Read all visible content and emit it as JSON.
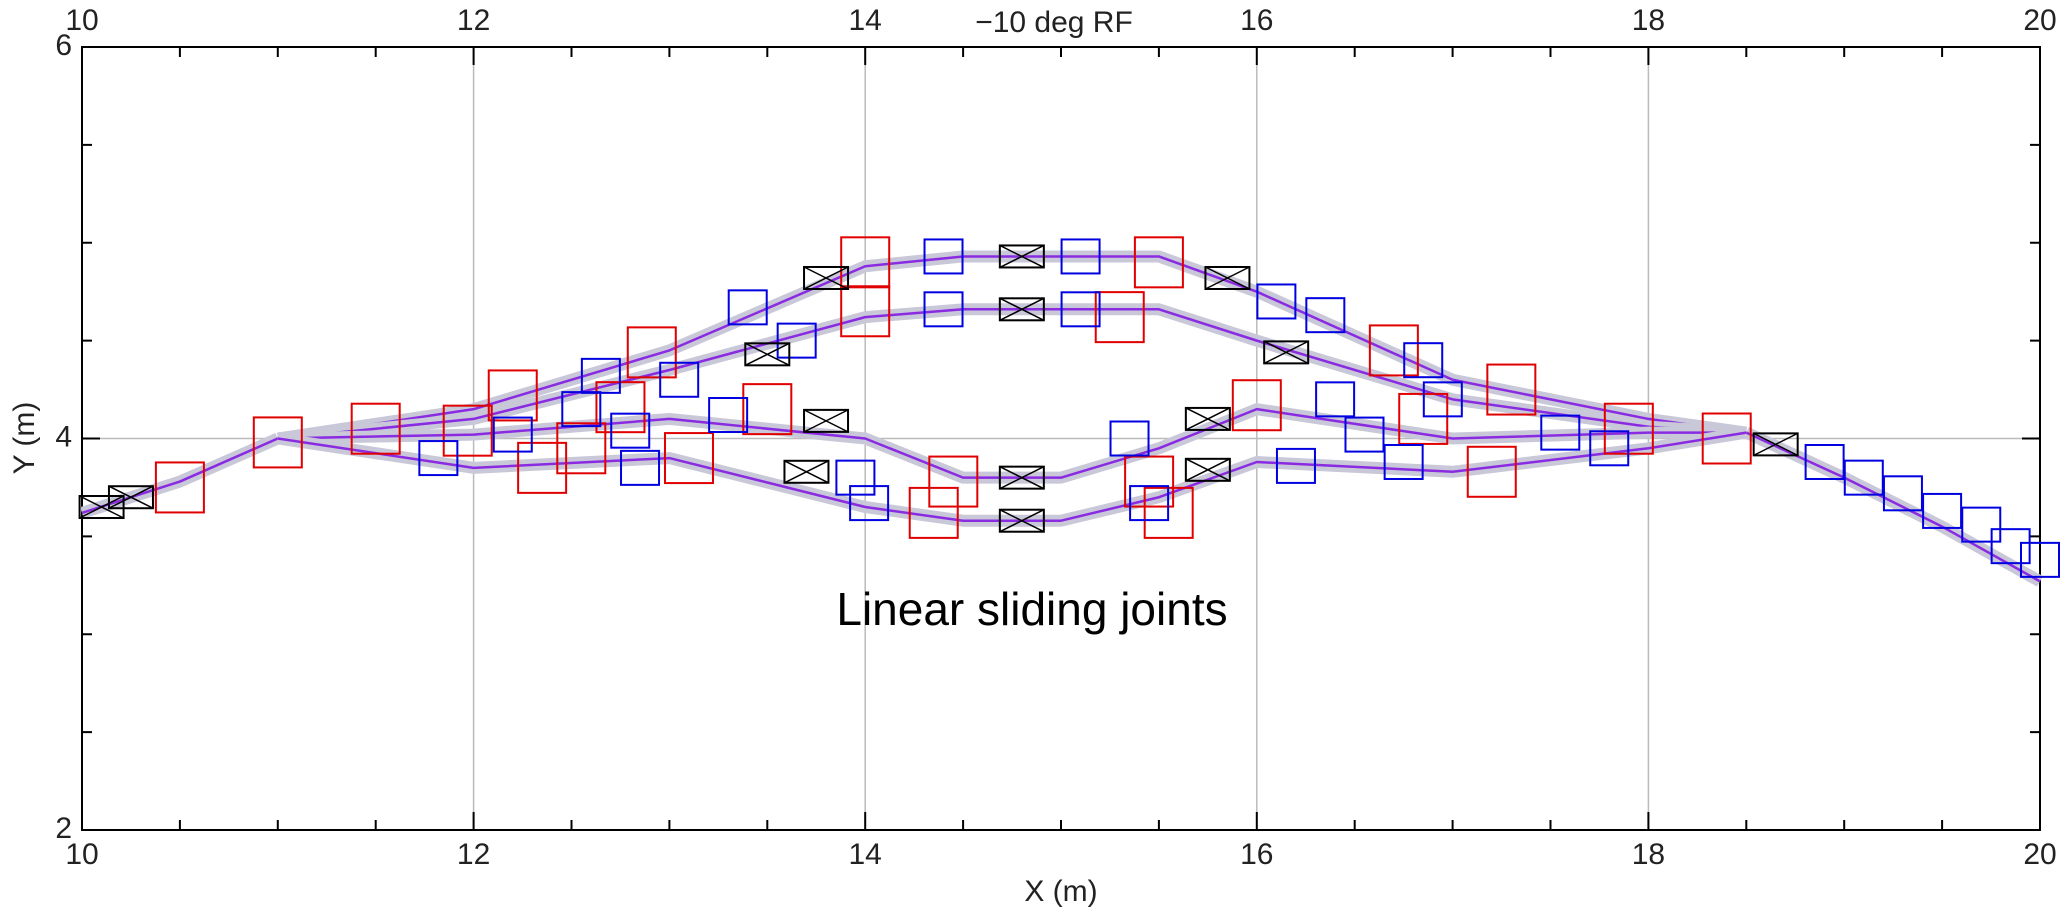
{
  "chart_data": {
    "type": "beamline",
    "title": "−10 deg RF",
    "x_label": "X (m)",
    "y_label": "Y (m)",
    "annotation": "Linear sliding joints",
    "xlim": [
      10,
      20
    ],
    "ylim": [
      2,
      6
    ],
    "xticks": [
      10,
      12,
      14,
      16,
      18,
      20
    ],
    "yticks": [
      2,
      4,
      6
    ],
    "xminorticks": [
      10.5,
      11,
      11.5,
      12.5,
      13,
      13.5,
      14.5,
      15,
      15.5,
      16.5,
      17,
      17.5,
      18.5,
      19,
      19.5
    ],
    "yminorticks": [
      2.5,
      3,
      3.5,
      4.5,
      5,
      5.5
    ],
    "grid": true,
    "series": [
      {
        "color": "#8a2be2",
        "x": [
          10,
          10.5,
          11
        ],
        "y": [
          3.62,
          3.78,
          4.0
        ]
      },
      {
        "color": "#8a2be2",
        "x": [
          11,
          12,
          13,
          14,
          14.5,
          15.5,
          16,
          17,
          18,
          18.5
        ],
        "y": [
          4.0,
          4.15,
          4.45,
          4.88,
          4.93,
          4.93,
          4.75,
          4.3,
          4.1,
          4.03
        ]
      },
      {
        "color": "#8a2be2",
        "x": [
          11,
          12,
          13,
          14,
          14.5,
          15.5,
          16,
          17,
          18,
          18.5
        ],
        "y": [
          4.0,
          4.1,
          4.35,
          4.62,
          4.66,
          4.66,
          4.5,
          4.2,
          4.06,
          4.03
        ]
      },
      {
        "color": "#8a2be2",
        "x": [
          11,
          12,
          13,
          14,
          14.5,
          15,
          15.5,
          16,
          17,
          18,
          18.5
        ],
        "y": [
          4.0,
          4.02,
          4.1,
          4.0,
          3.8,
          3.8,
          3.95,
          4.15,
          4.0,
          4.03,
          4.03
        ]
      },
      {
        "color": "#8a2be2",
        "x": [
          11,
          12,
          13,
          14,
          14.5,
          15,
          15.5,
          16,
          17,
          18,
          18.5
        ],
        "y": [
          4.0,
          3.85,
          3.9,
          3.65,
          3.58,
          3.58,
          3.7,
          3.88,
          3.83,
          3.95,
          4.03
        ]
      },
      {
        "color": "#8a2be2",
        "x": [
          18.5,
          19,
          19.5,
          20
        ],
        "y": [
          4.03,
          3.8,
          3.55,
          3.27
        ]
      }
    ],
    "dipoles": {
      "color": "#e00000",
      "x": [
        10.5,
        11.0,
        11.5,
        12.2,
        11.97,
        12.35,
        12.91,
        12.75,
        12.55,
        13.1,
        13.5,
        14.0,
        14.0,
        14.45,
        14.35,
        15.45,
        15.55,
        15.5,
        15.3,
        16.0,
        16.7,
        16.85,
        17.3,
        17.2,
        17.9,
        18.4
      ],
      "y": [
        3.75,
        3.98,
        4.05,
        4.22,
        4.04,
        3.85,
        4.44,
        4.16,
        3.95,
        3.9,
        4.15,
        4.9,
        4.65,
        3.78,
        3.62,
        3.78,
        3.62,
        4.9,
        4.62,
        4.17,
        4.45,
        4.1,
        4.25,
        3.83,
        4.05,
        4.0
      ]
    },
    "quads": {
      "color": "#0000e0",
      "x": [
        11.82,
        12.2,
        12.65,
        12.55,
        12.8,
        12.85,
        13.05,
        13.3,
        13.4,
        13.65,
        13.95,
        14.4,
        14.4,
        15.1,
        15.1,
        14.02,
        15.35,
        15.45,
        16.1,
        16.35,
        16.4,
        16.2,
        16.55,
        16.75,
        16.85,
        16.95,
        17.8,
        17.55,
        18.9,
        19.1,
        19.3,
        19.5,
        19.7,
        19.85,
        20.0
      ],
      "y": [
        3.9,
        4.02,
        4.32,
        4.15,
        4.04,
        3.85,
        4.3,
        4.12,
        4.67,
        4.5,
        3.8,
        4.93,
        4.66,
        4.93,
        4.66,
        3.67,
        4.0,
        3.67,
        4.7,
        4.63,
        4.2,
        3.86,
        4.02,
        3.88,
        4.4,
        4.2,
        3.95,
        4.03,
        3.88,
        3.8,
        3.72,
        3.63,
        3.56,
        3.45,
        3.38
      ]
    },
    "kickers": {
      "color": "#000000",
      "x": [
        10.1,
        10.25,
        13.8,
        13.5,
        13.8,
        13.7,
        14.8,
        14.8,
        14.8,
        14.8,
        15.85,
        15.75,
        15.75,
        16.15,
        18.65
      ],
      "y": [
        3.65,
        3.7,
        4.82,
        4.43,
        4.09,
        3.83,
        4.93,
        4.66,
        3.8,
        3.58,
        4.82,
        4.1,
        3.84,
        4.44,
        3.97
      ]
    }
  }
}
